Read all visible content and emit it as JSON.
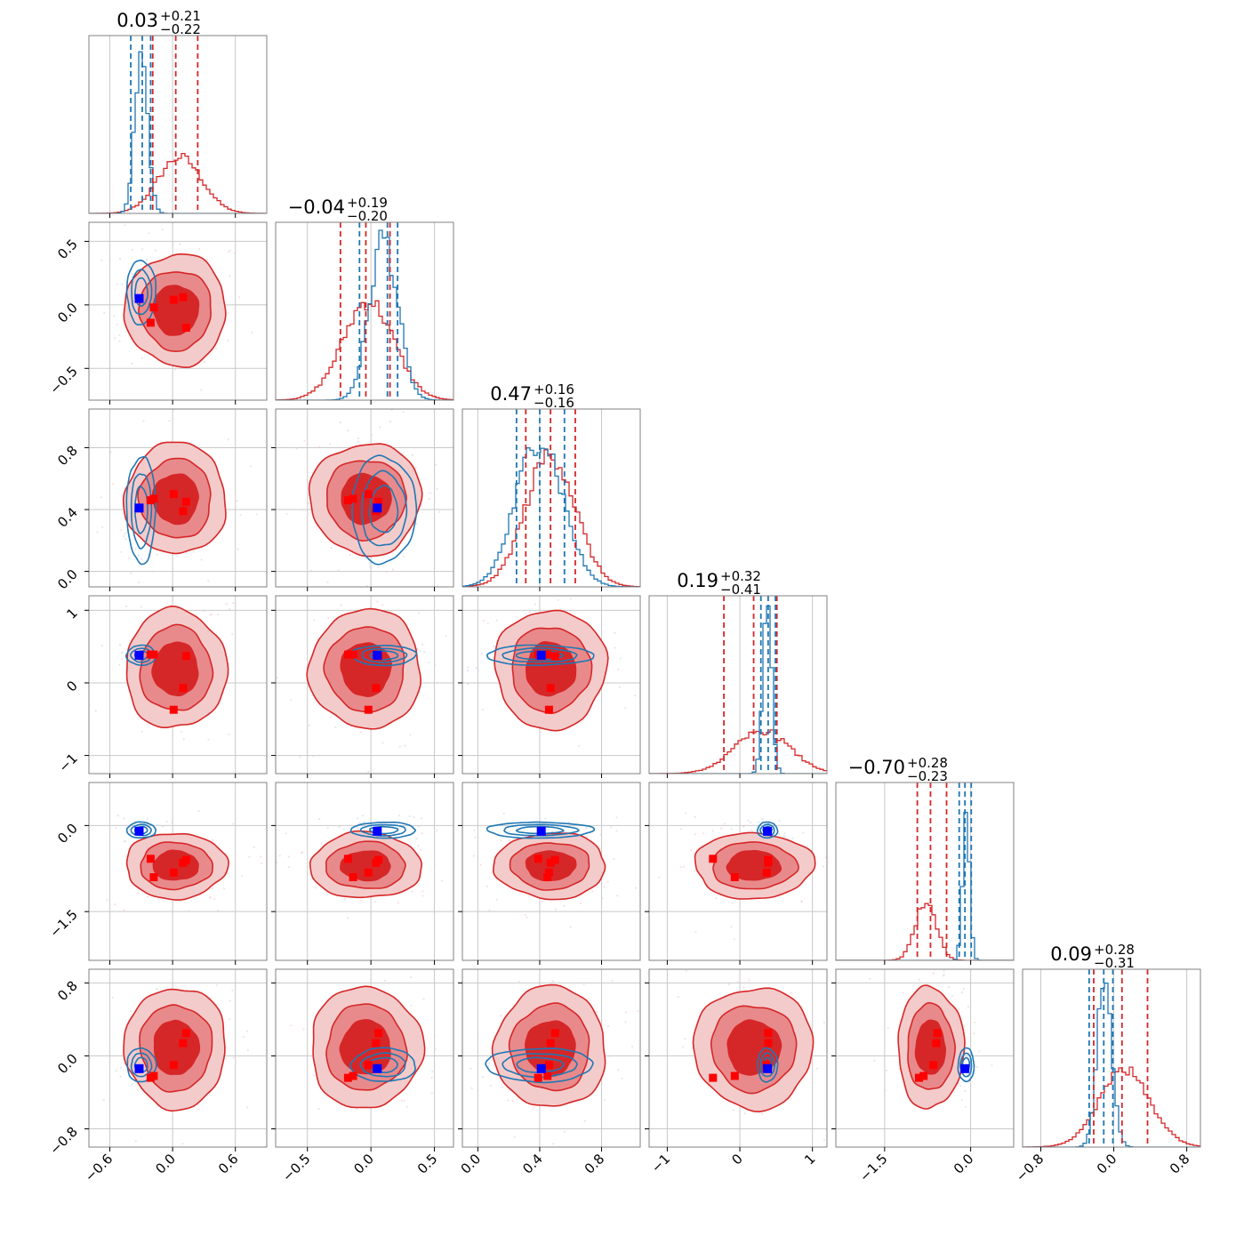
{
  "colors": {
    "red": "#d62728",
    "red_mid": "#e88a8b",
    "red_light": "#f4cbcb",
    "blue": "#1f77b4",
    "marker_red": "#ff0000",
    "marker_blue": "#0000ff",
    "grid": "#c8c8c8",
    "axis": "#808080"
  },
  "chart_data": {
    "type": "corner",
    "grid": true,
    "parameters": [
      {
        "range": [
          -0.8,
          0.9
        ],
        "ticks": [
          -0.6,
          0.0,
          0.6
        ],
        "tick_labels": [
          "−0.6",
          "0.0",
          "0.6"
        ],
        "title": {
          "median": "0.03",
          "plus": "+0.21",
          "minus": "−0.22"
        },
        "red_quantiles": [
          -0.19,
          0.03,
          0.24
        ],
        "blue_quantiles": [
          -0.4,
          -0.29,
          -0.21
        ],
        "red_peak": 0.07,
        "red_sigma": 0.21,
        "blue_peak": -0.3,
        "blue_sigma": 0.06,
        "red_height": 0.33,
        "blue_height": 1.0,
        "true_blue": -0.32,
        "red_markers": [
          -0.21,
          -0.18,
          0.01,
          0.1,
          0.13
        ]
      },
      {
        "range": [
          -0.75,
          0.65
        ],
        "ticks": [
          -0.5,
          0.0,
          0.5
        ],
        "tick_labels": [
          "−0.5",
          "0.0",
          "0.5"
        ],
        "title": {
          "median": "−0.04",
          "plus": "+0.19",
          "minus": "−0.20"
        },
        "red_quantiles": [
          -0.24,
          -0.04,
          0.15
        ],
        "blue_quantiles": [
          -0.09,
          0.13,
          0.21
        ],
        "red_peak": -0.02,
        "red_sigma": 0.2,
        "blue_peak": 0.1,
        "blue_sigma": 0.11,
        "red_height": 0.58,
        "blue_height": 0.95,
        "true_blue": 0.05,
        "red_markers": [
          -0.18,
          -0.14,
          -0.02,
          0.04,
          0.06
        ]
      },
      {
        "range": [
          -0.1,
          1.05
        ],
        "ticks": [
          0.0,
          0.4,
          0.8
        ],
        "tick_labels": [
          "0.0",
          "0.4",
          "0.8"
        ],
        "title": {
          "median": "0.47",
          "plus": "+0.16",
          "minus": "−0.16"
        },
        "red_quantiles": [
          0.31,
          0.47,
          0.63
        ],
        "blue_quantiles": [
          0.25,
          0.4,
          0.56
        ],
        "red_peak": 0.47,
        "red_sigma": 0.16,
        "blue_peak": 0.4,
        "blue_sigma": 0.15,
        "red_height": 0.78,
        "blue_height": 0.88,
        "true_blue": 0.41,
        "red_markers": [
          0.39,
          0.45,
          0.46,
          0.47,
          0.5
        ]
      },
      {
        "range": [
          -1.25,
          1.2
        ],
        "ticks": [
          -1.0,
          0.0,
          1.0
        ],
        "tick_labels": [
          "−1",
          "0",
          "1"
        ],
        "title": {
          "median": "0.19",
          "plus": "+0.32",
          "minus": "−0.41"
        },
        "red_quantiles": [
          -0.22,
          0.19,
          0.51
        ],
        "blue_quantiles": [
          0.29,
          0.39,
          0.49
        ],
        "red_peak": 0.31,
        "red_sigma": 0.38,
        "blue_peak": 0.38,
        "blue_sigma": 0.06,
        "red_height": 0.25,
        "blue_height": 1.0,
        "true_blue": 0.38,
        "red_markers": [
          -0.37,
          -0.07,
          0.37,
          0.39,
          0.39
        ]
      },
      {
        "range": [
          -2.35,
          0.75
        ],
        "ticks": [
          -1.5,
          0.0
        ],
        "tick_labels": [
          "−1.5",
          "0.0"
        ],
        "title": {
          "median": "−0.70",
          "plus": "+0.28",
          "minus": "−0.23"
        },
        "red_quantiles": [
          -0.93,
          -0.7,
          -0.42
        ],
        "blue_quantiles": [
          -0.2,
          -0.1,
          0.01
        ],
        "red_peak": -0.78,
        "red_sigma": 0.18,
        "blue_peak": -0.08,
        "blue_sigma": 0.06,
        "red_height": 0.35,
        "blue_height": 0.9,
        "true_blue": -0.1,
        "red_markers": [
          -0.9,
          -0.82,
          -0.65,
          -0.6,
          -0.58
        ]
      },
      {
        "range": [
          -1.0,
          0.95
        ],
        "ticks": [
          -0.8,
          0.0,
          0.8
        ],
        "tick_labels": [
          "−0.8",
          "0.0",
          "0.8"
        ],
        "title": {
          "median": "0.09",
          "plus": "+0.28",
          "minus": "−0.31"
        },
        "red_quantiles": [
          -0.22,
          0.09,
          0.37
        ],
        "blue_quantiles": [
          -0.27,
          -0.11,
          -0.01
        ],
        "red_peak": 0.12,
        "red_sigma": 0.28,
        "blue_peak": -0.1,
        "blue_sigma": 0.08,
        "red_height": 0.45,
        "blue_height": 1.0,
        "true_blue": -0.14,
        "red_markers": [
          -0.24,
          -0.22,
          -0.1,
          0.14,
          0.25
        ]
      }
    ]
  }
}
